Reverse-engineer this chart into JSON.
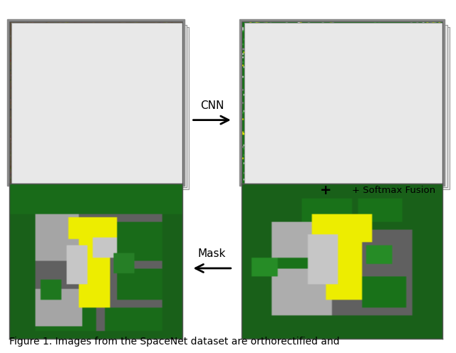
{
  "title": "Figure 1. Images from the SpaceNet dataset are orthorectified and",
  "title_fontsize": 11,
  "background_color": "#ffffff",
  "cnn_label": "CNN",
  "softmax_label": "+ Softmax Fusion",
  "mask_label": "Mask",
  "colors": {
    "dark_green": "#1a5c1a",
    "medium_green": "#2e8b2e",
    "light_green": "#5aad2e",
    "yellow": "#f0f000",
    "gray_dark": "#5a5a5a",
    "gray_medium": "#888888",
    "gray_light": "#bbbbbb",
    "white": "#ffffff",
    "asphalt": "#606060",
    "border_gray": "#aaaaaa"
  }
}
